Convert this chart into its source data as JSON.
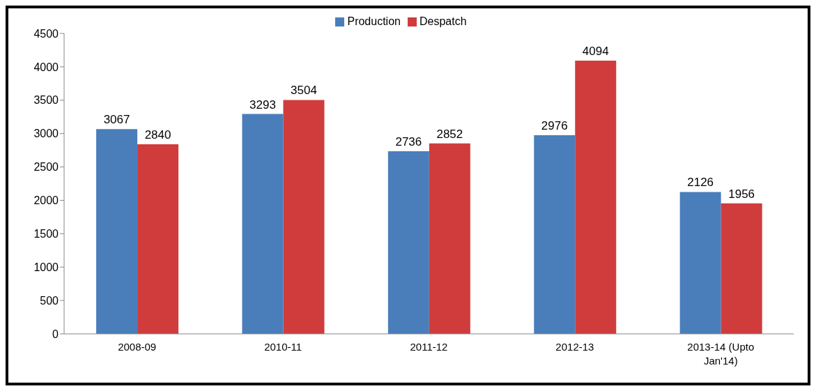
{
  "chart_data": {
    "type": "bar",
    "categories": [
      "2008-09",
      "2010-11",
      "2011-12",
      "2012-13",
      "2013-14 (Upto Jan'14)"
    ],
    "series": [
      {
        "name": "Production",
        "color": "#4a7ebb",
        "values": [
          3067,
          3293,
          2736,
          2976,
          2126
        ]
      },
      {
        "name": "Despatch",
        "color": "#d03c3c",
        "values": [
          2840,
          3504,
          2852,
          4094,
          1956
        ]
      }
    ],
    "ylim": [
      0,
      4500
    ],
    "yticks": [
      0,
      500,
      1000,
      1500,
      2000,
      2500,
      3000,
      3500,
      4000,
      4500
    ],
    "grid": false,
    "legend": "top",
    "data_labels": true
  }
}
